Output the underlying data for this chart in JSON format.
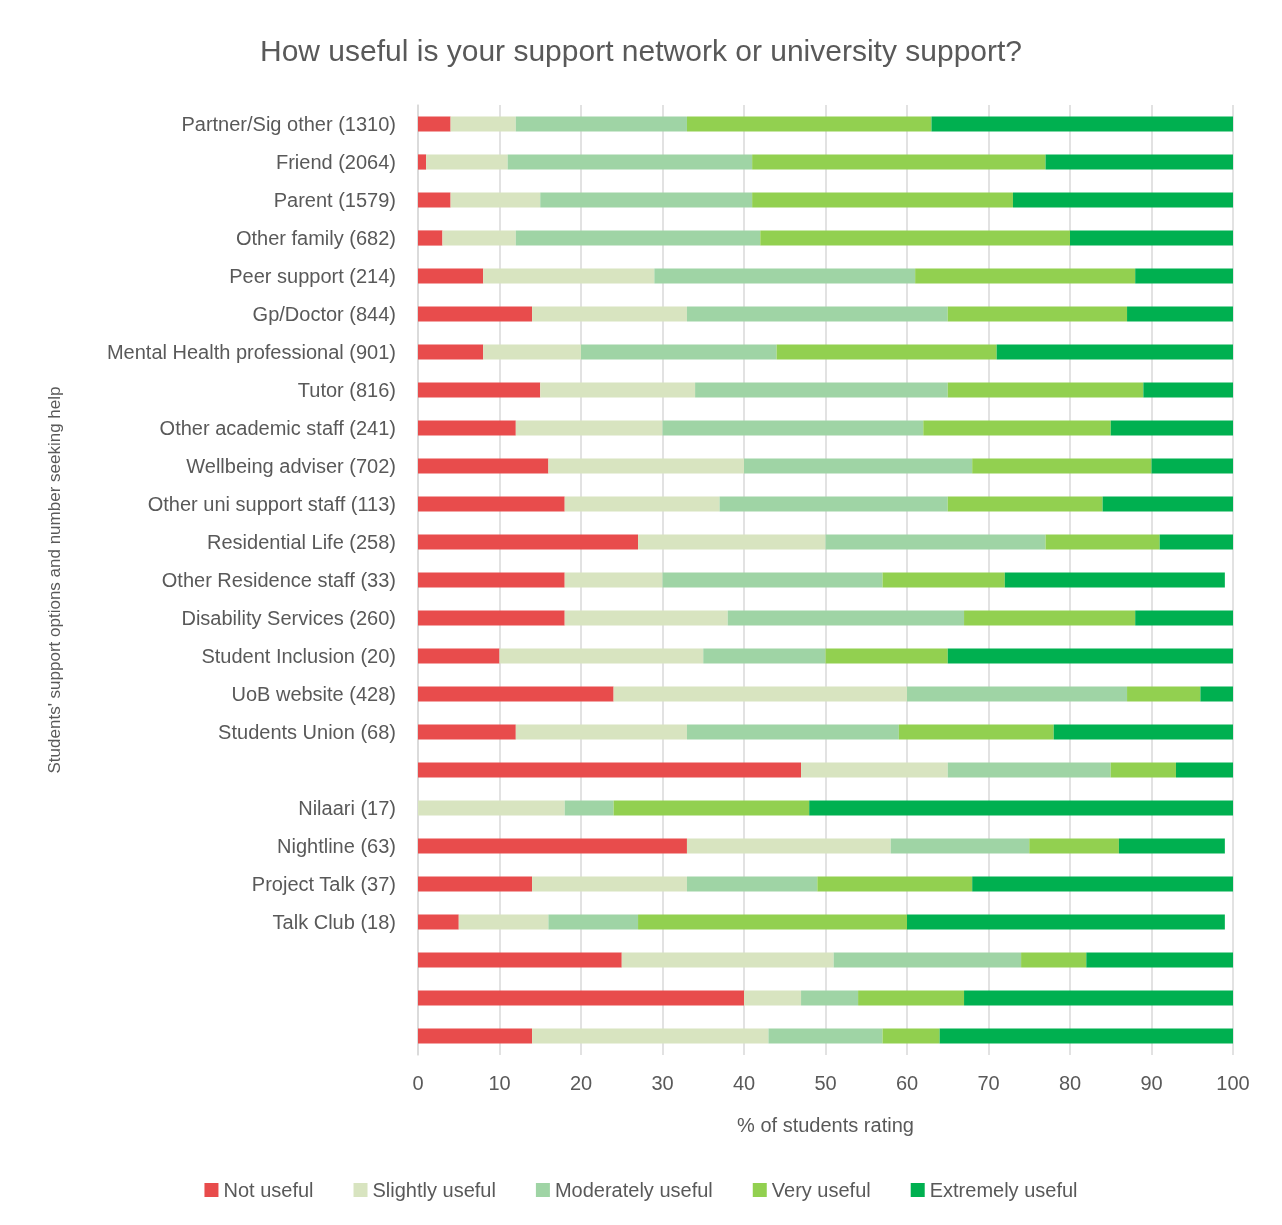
{
  "chart_data": {
    "type": "bar",
    "orientation": "horizontal",
    "stacked": true,
    "title": "How useful is your support network or university support?",
    "xlabel": "% of students rating",
    "ylabel": "Students' support options and number seeking help",
    "categories": [
      "Partner/Sig other (1310)",
      "Friend (2064)",
      "Parent (1579)",
      "Other family (682)",
      "Peer support (214)",
      "Gp/Doctor (844)",
      "Mental Health professional (901)",
      "Tutor (816)",
      "Other academic staff (241)",
      "Wellbeing adviser (702)",
      "Other uni support staff (113)",
      "Residential Life (258)",
      "Other Residence staff (33)",
      "Disability Services (260)",
      "Student Inclusion (20)",
      "UoB website (428)",
      "Students Union (68)",
      null,
      "Nilaari (17)",
      "Nightline (63)",
      "Project Talk (37)",
      "Talk Club (18)",
      null,
      null,
      null
    ],
    "series": [
      {
        "name": "Not useful",
        "color": "#e84c4c",
        "values": [
          4,
          1,
          4,
          3,
          8,
          14,
          8,
          15,
          12,
          16,
          18,
          27,
          18,
          18,
          10,
          24,
          12,
          47,
          0,
          33,
          14,
          5,
          25,
          40,
          14
        ]
      },
      {
        "name": "Slightly useful",
        "color": "#d8e4c0",
        "values": [
          8,
          10,
          11,
          9,
          21,
          19,
          12,
          19,
          18,
          24,
          19,
          23,
          12,
          20,
          25,
          36,
          21,
          18,
          18,
          25,
          19,
          11,
          26,
          7,
          29
        ]
      },
      {
        "name": "Moderately useful",
        "color": "#9fd4a5",
        "values": [
          21,
          30,
          26,
          30,
          32,
          32,
          24,
          31,
          32,
          28,
          28,
          27,
          27,
          29,
          15,
          27,
          26,
          20,
          6,
          17,
          16,
          11,
          23,
          7,
          14
        ]
      },
      {
        "name": "Very useful",
        "color": "#92d050",
        "values": [
          30,
          36,
          32,
          38,
          27,
          22,
          27,
          24,
          23,
          22,
          19,
          14,
          15,
          21,
          15,
          9,
          19,
          8,
          24,
          11,
          19,
          33,
          8,
          13,
          7
        ]
      },
      {
        "name": "Extremely useful",
        "color": "#00b050",
        "values": [
          37,
          23,
          27,
          20,
          12,
          13,
          29,
          11,
          15,
          10,
          16,
          9,
          27,
          12,
          35,
          4,
          22,
          7,
          52,
          13,
          32,
          39,
          18,
          33,
          36
        ]
      }
    ],
    "xlim": [
      0,
      100
    ],
    "xticks": [
      0,
      10,
      20,
      30,
      40,
      50,
      60,
      70,
      80,
      90,
      100
    ],
    "grid": "x",
    "legend": "bottom"
  }
}
